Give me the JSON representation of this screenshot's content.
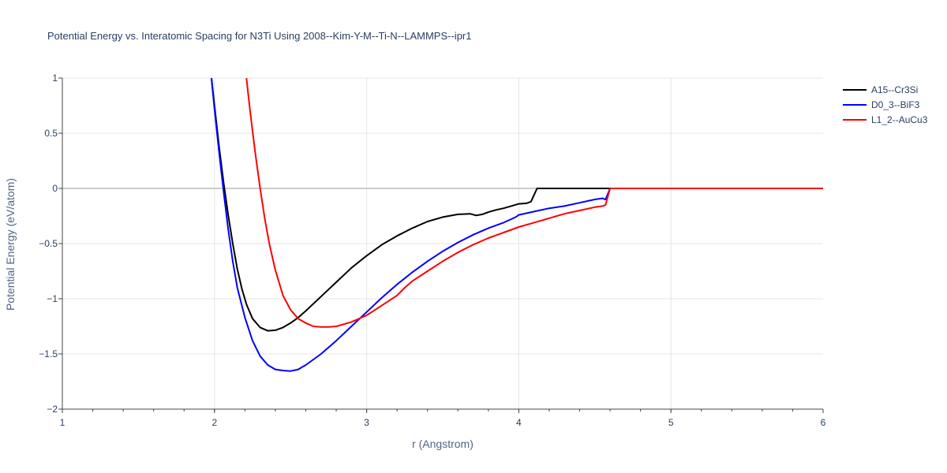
{
  "chart_data": {
    "type": "line",
    "title": "Potential Energy vs. Interatomic Spacing for N3Ti Using 2008--Kim-Y-M--Ti-N--LAMMPS--ipr1",
    "xlabel": "r (Angstrom)",
    "ylabel": "Potential Energy (eV/atom)",
    "xlim": [
      1,
      6
    ],
    "ylim": [
      -2,
      1
    ],
    "xticks": [
      1,
      2,
      3,
      4,
      5,
      6
    ],
    "xtick_labels": [
      "1",
      "2",
      "3",
      "4",
      "5",
      "6"
    ],
    "yticks": [
      -2,
      -1.5,
      -1,
      -0.5,
      0,
      0.5,
      1
    ],
    "ytick_labels": [
      "−2",
      "−1.5",
      "−1",
      "−0.5",
      "0",
      "0.5",
      "1"
    ],
    "grid": true,
    "legend_position": "top-right",
    "series": [
      {
        "name": "A15--Cr3Si",
        "color": "#000000",
        "x": [
          1.98,
          2.0,
          2.03,
          2.06,
          2.09,
          2.12,
          2.15,
          2.18,
          2.21,
          2.25,
          2.3,
          2.35,
          2.4,
          2.45,
          2.5,
          2.55,
          2.6,
          2.7,
          2.8,
          2.9,
          3.0,
          3.1,
          3.2,
          3.3,
          3.4,
          3.5,
          3.6,
          3.68,
          3.72,
          3.76,
          3.8,
          3.85,
          3.9,
          3.95,
          4.0,
          4.05,
          4.08,
          4.1,
          4.12,
          4.2,
          4.3,
          4.4,
          4.5,
          4.6,
          5.0,
          5.5,
          6.0
        ],
        "y": [
          1.0,
          0.75,
          0.38,
          0.05,
          -0.24,
          -0.5,
          -0.73,
          -0.91,
          -1.05,
          -1.18,
          -1.26,
          -1.29,
          -1.285,
          -1.26,
          -1.22,
          -1.17,
          -1.11,
          -0.98,
          -0.85,
          -0.72,
          -0.61,
          -0.51,
          -0.43,
          -0.36,
          -0.3,
          -0.26,
          -0.235,
          -0.23,
          -0.245,
          -0.235,
          -0.215,
          -0.195,
          -0.18,
          -0.16,
          -0.14,
          -0.135,
          -0.12,
          -0.06,
          0.0,
          0.0,
          0.0,
          0.0,
          0.0,
          0.0,
          0.0,
          0.0,
          0.0
        ]
      },
      {
        "name": "D0_3--BiF3",
        "color": "#0000ff",
        "x": [
          1.98,
          2.0,
          2.03,
          2.06,
          2.09,
          2.12,
          2.15,
          2.2,
          2.25,
          2.3,
          2.35,
          2.4,
          2.45,
          2.5,
          2.55,
          2.6,
          2.7,
          2.8,
          2.9,
          3.0,
          3.1,
          3.2,
          3.3,
          3.4,
          3.5,
          3.6,
          3.7,
          3.8,
          3.9,
          3.98,
          4.0,
          4.1,
          4.2,
          4.3,
          4.4,
          4.5,
          4.55,
          4.57,
          4.6,
          5.0,
          5.5,
          6.0
        ],
        "y": [
          1.0,
          0.72,
          0.33,
          -0.03,
          -0.37,
          -0.66,
          -0.9,
          -1.17,
          -1.38,
          -1.52,
          -1.6,
          -1.64,
          -1.65,
          -1.655,
          -1.64,
          -1.6,
          -1.5,
          -1.38,
          -1.25,
          -1.12,
          -0.99,
          -0.87,
          -0.76,
          -0.66,
          -0.57,
          -0.49,
          -0.42,
          -0.36,
          -0.31,
          -0.26,
          -0.24,
          -0.21,
          -0.18,
          -0.16,
          -0.13,
          -0.1,
          -0.09,
          -0.1,
          0.0,
          0.0,
          0.0,
          0.0
        ]
      },
      {
        "name": "L1_2--AuCu3",
        "color": "#ff0000",
        "x": [
          2.21,
          2.23,
          2.25,
          2.27,
          2.3,
          2.33,
          2.36,
          2.4,
          2.45,
          2.5,
          2.55,
          2.6,
          2.65,
          2.7,
          2.75,
          2.8,
          2.9,
          3.0,
          3.1,
          3.2,
          3.25,
          3.3,
          3.4,
          3.5,
          3.6,
          3.7,
          3.8,
          3.9,
          4.0,
          4.1,
          4.2,
          4.3,
          4.4,
          4.5,
          4.55,
          4.57,
          4.6,
          5.0,
          5.5,
          6.0
        ],
        "y": [
          1.0,
          0.75,
          0.52,
          0.3,
          0.0,
          -0.27,
          -0.5,
          -0.74,
          -0.97,
          -1.1,
          -1.18,
          -1.22,
          -1.25,
          -1.255,
          -1.255,
          -1.25,
          -1.21,
          -1.15,
          -1.06,
          -0.97,
          -0.9,
          -0.84,
          -0.75,
          -0.66,
          -0.58,
          -0.51,
          -0.45,
          -0.4,
          -0.35,
          -0.31,
          -0.27,
          -0.23,
          -0.2,
          -0.17,
          -0.16,
          -0.15,
          0.0,
          0.0,
          0.0,
          0.0
        ]
      }
    ]
  }
}
